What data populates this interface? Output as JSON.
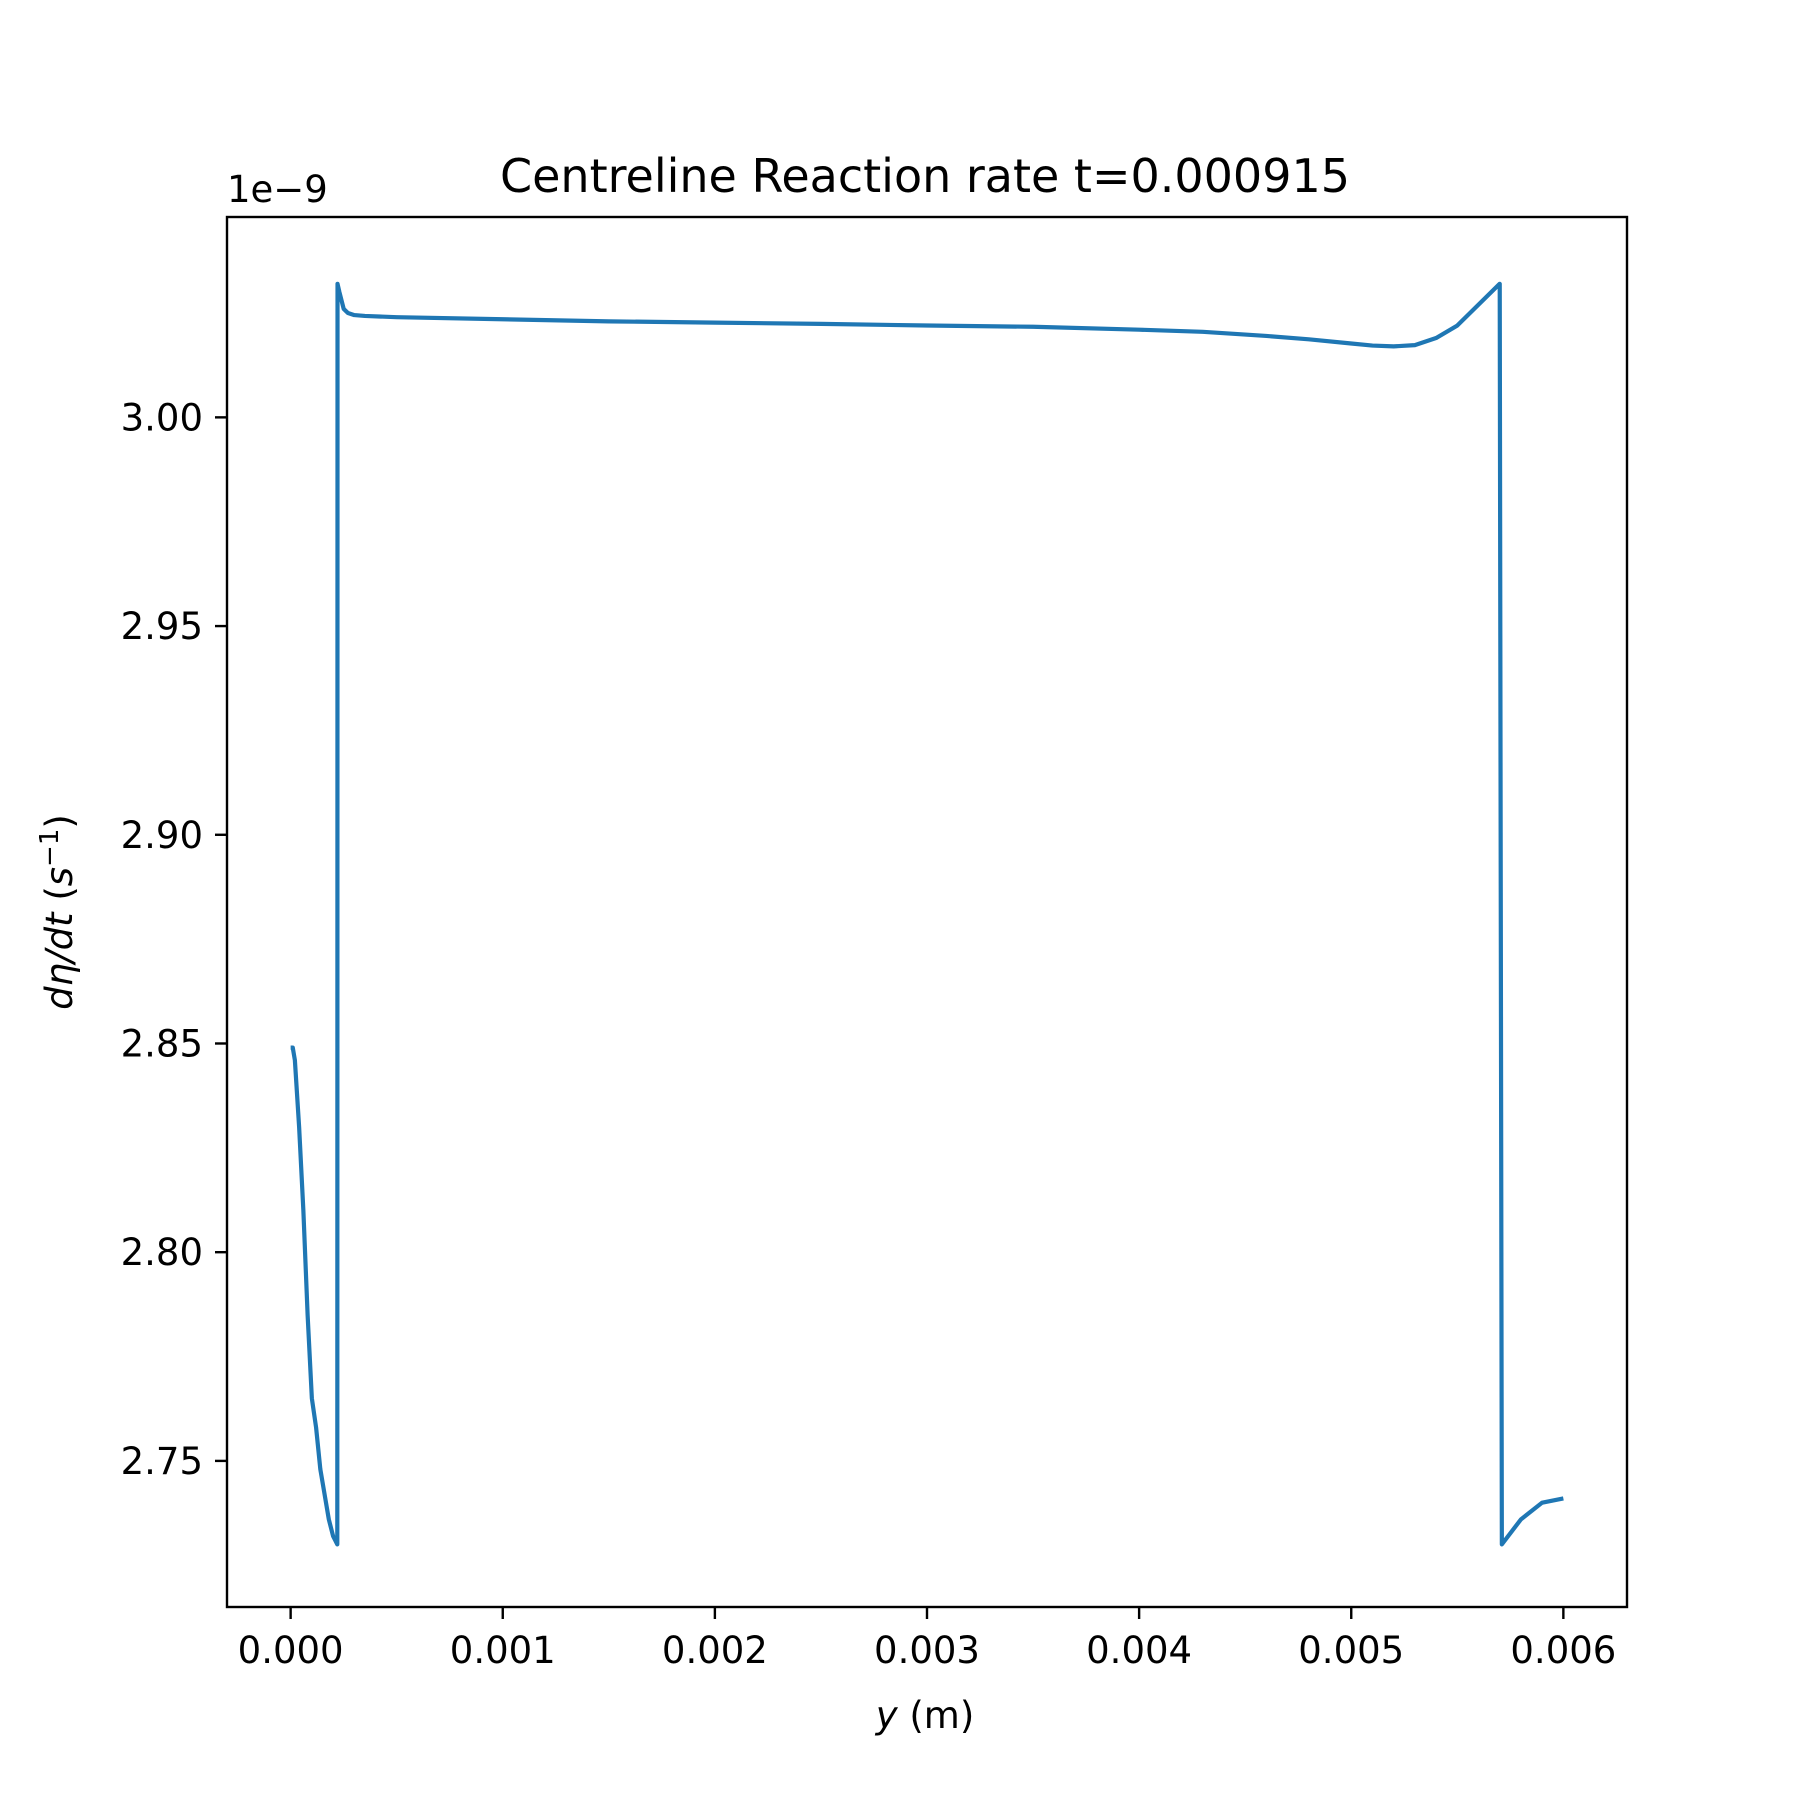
{
  "chart_data": {
    "type": "line",
    "title": "Centreline Reaction rate t=0.000915",
    "xlabel": {
      "var": "y",
      "unit": " (m)"
    },
    "ylabel": {
      "prefix": "dη/dt",
      "open": " (",
      "base": "s",
      "sup": "−1",
      "close": ")"
    },
    "y_offset_label": "1e−9",
    "xlim": [
      -0.0003,
      0.0063
    ],
    "ylim": [
      2.715,
      3.048
    ],
    "x_ticks": [
      0.0,
      0.001,
      0.002,
      0.003,
      0.004,
      0.005,
      0.006
    ],
    "x_tick_labels": [
      "0.000",
      "0.001",
      "0.002",
      "0.003",
      "0.004",
      "0.005",
      "0.006"
    ],
    "y_ticks": [
      2.75,
      2.8,
      2.85,
      2.9,
      2.95,
      3.0
    ],
    "y_tick_labels": [
      "2.75",
      "2.80",
      "2.85",
      "2.90",
      "2.95",
      "3.00"
    ],
    "grid": false,
    "line_color": "#1f77b4",
    "series": [
      {
        "x": [
          0.0,
          1e-05,
          2e-05,
          4e-05,
          6e-05,
          8e-05,
          0.0001,
          0.00012,
          0.00014,
          0.00016,
          0.00018,
          0.0002,
          0.00021,
          0.00022,
          0.000221,
          0.00023,
          0.00025,
          0.00027,
          0.0003,
          0.00035,
          0.0005,
          0.001,
          0.0015,
          0.002,
          0.0025,
          0.003,
          0.0035,
          0.004,
          0.0043,
          0.0046,
          0.0048,
          0.005,
          0.0051,
          0.0052,
          0.0053,
          0.0054,
          0.0055,
          0.0056,
          0.0057,
          0.00571,
          0.0058,
          0.0059,
          0.006
        ],
        "y": [
          2.849,
          2.849,
          2.846,
          2.83,
          2.81,
          2.785,
          2.765,
          2.758,
          2.748,
          2.742,
          2.736,
          2.732,
          2.731,
          2.73,
          3.032,
          3.03,
          3.026,
          3.025,
          3.0245,
          3.0243,
          3.024,
          3.0235,
          3.023,
          3.0227,
          3.0224,
          3.022,
          3.0217,
          3.021,
          3.0205,
          3.0195,
          3.0187,
          3.0177,
          3.0172,
          3.017,
          3.0173,
          3.019,
          3.022,
          3.027,
          3.032,
          2.73,
          2.736,
          2.74,
          2.741
        ]
      }
    ]
  }
}
